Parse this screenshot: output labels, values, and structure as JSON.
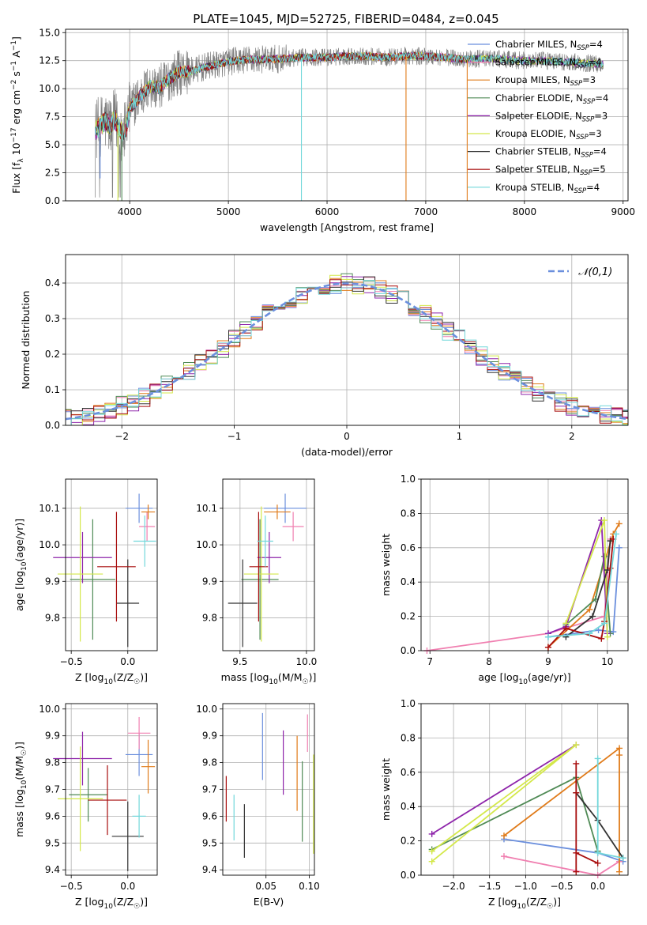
{
  "figure": {
    "title": "PLATE=1045, MJD=52725, FIBERID=0484, z=0.045"
  },
  "colors": {
    "data_gray": "#808080",
    "grid": "#b0b0b0",
    "series": [
      "#6b8fdd",
      "#f07fb0",
      "#e07b1a",
      "#4f8a55",
      "#8e24aa",
      "#d4e84a",
      "#333333",
      "#a80d0d",
      "#72d7da"
    ]
  },
  "labels": {
    "models": [
      {
        "name": "Chabrier MILES, N",
        "sub": "SSP",
        "eq": "=4"
      },
      {
        "name": "Salpeter MILES, N",
        "sub": "SSP",
        "eq": "=4"
      },
      {
        "name": "Kroupa MILES, N",
        "sub": "SSP",
        "eq": "=3"
      },
      {
        "name": "Chabrier ELODIE, N",
        "sub": "SSP",
        "eq": "=4"
      },
      {
        "name": "Salpeter ELODIE, N",
        "sub": "SSP",
        "eq": "=3"
      },
      {
        "name": "Kroupa ELODIE, N",
        "sub": "SSP",
        "eq": "=3"
      },
      {
        "name": "Chabrier STELIB, N",
        "sub": "SSP",
        "eq": "=4"
      },
      {
        "name": "Salpeter STELIB, N",
        "sub": "SSP",
        "eq": "=5"
      },
      {
        "name": "Kroupa STELIB, N",
        "sub": "SSP",
        "eq": "=4"
      }
    ],
    "normal_legend": "𝒩(0,1)"
  },
  "chart_data": [
    {
      "id": "spectrum",
      "type": "line",
      "title": "PLATE=1045, MJD=52725, FIBERID=0484, z=0.045",
      "xlabel": "wavelength [Angstrom, rest frame]",
      "ylabel": "Flux [f_λ 10^-17 erg cm^-2 s^-1 A^-1]",
      "xlim": [
        3350,
        9050
      ],
      "ylim": [
        0,
        15.3
      ],
      "xticks": [
        4000,
        5000,
        6000,
        7000,
        8000,
        9000
      ],
      "yticks": [
        0.0,
        2.5,
        5.0,
        7.5,
        10.0,
        12.5,
        15.0
      ],
      "legend": "upper-right",
      "continuum": {
        "x": [
          3650,
          3700,
          3750,
          3800,
          3850,
          3900,
          3950,
          4000,
          4100,
          4200,
          4300,
          4400,
          4500,
          4600,
          4800,
          5000,
          5200,
          5400,
          5600,
          5800,
          6000,
          6200,
          6400,
          6600,
          6800,
          7000,
          7200,
          7400,
          7600,
          7800,
          8000,
          8200,
          8400,
          8600,
          8800
        ],
        "y": [
          6.3,
          6.6,
          7.1,
          6.7,
          7.3,
          6.4,
          6.0,
          8.2,
          9.3,
          10.2,
          10.1,
          10.9,
          11.5,
          11.5,
          12.0,
          12.4,
          12.6,
          12.6,
          12.7,
          12.8,
          12.8,
          12.9,
          12.9,
          12.8,
          12.9,
          12.9,
          12.8,
          12.6,
          12.7,
          12.6,
          12.5,
          12.5,
          12.4,
          12.3,
          12.2
        ]
      },
      "glitches": [
        {
          "x": 3700,
          "model": "Chabrier MILES",
          "depth": 2.0
        },
        {
          "x": 3880,
          "model": "Kroupa ELODIE",
          "depth": 0.0
        },
        {
          "x": 3920,
          "model": "Chabrier ELODIE",
          "depth": 0.0
        },
        {
          "x": 5740,
          "model": "Kroupa STELIB",
          "depth": 0.0
        },
        {
          "x": 6800,
          "model": "Kroupa MILES",
          "depth": 0.0
        },
        {
          "x": 7420,
          "model": "Kroupa MILES",
          "depth": 0.0
        }
      ],
      "series": [
        "Chabrier MILES",
        "Salpeter MILES",
        "Kroupa MILES",
        "Chabrier ELODIE",
        "Salpeter ELODIE",
        "Kroupa ELODIE",
        "Chabrier STELIB",
        "Salpeter STELIB",
        "Kroupa STELIB"
      ]
    },
    {
      "id": "residuals",
      "type": "histogram",
      "xlabel": "(data-model)/error",
      "ylabel": "Normed distribution",
      "xlim": [
        -2.5,
        2.5
      ],
      "ylim": [
        0,
        0.48
      ],
      "xticks": [
        -2,
        -1,
        0,
        1,
        2
      ],
      "yticks": [
        0.0,
        0.1,
        0.2,
        0.3,
        0.4
      ],
      "legend": "upper-right",
      "bin_width": 0.1,
      "curve": "normal(0,1)"
    },
    {
      "id": "age_vs_Z",
      "type": "errorbar",
      "xlabel": "Z [log10(Z/Z☉)]",
      "ylabel": "age [log10(age/yr)]",
      "xlim": [
        -0.55,
        0.26
      ],
      "ylim": [
        9.71,
        10.18
      ],
      "xticks": [
        -0.5,
        0.0
      ],
      "yticks": [
        9.8,
        9.9,
        10.0,
        10.1
      ],
      "points": [
        {
          "model": "Chabrier MILES",
          "x": 0.1,
          "xerr": 0.12,
          "y": 10.1,
          "yerr": 0.04
        },
        {
          "model": "Salpeter MILES",
          "x": 0.17,
          "xerr": 0.07,
          "y": 10.05,
          "yerr": 0.04
        },
        {
          "model": "Kroupa MILES",
          "x": 0.18,
          "xerr": 0.06,
          "y": 10.09,
          "yerr": 0.02
        },
        {
          "model": "Chabrier ELODIE",
          "x": -0.31,
          "xerr": 0.2,
          "y": 9.905,
          "yerr": 0.165
        },
        {
          "model": "Salpeter ELODIE",
          "x": -0.4,
          "xerr": 0.26,
          "y": 9.965,
          "yerr": 0.07
        },
        {
          "model": "Kroupa ELODIE",
          "x": -0.42,
          "xerr": 0.2,
          "y": 9.92,
          "yerr": 0.185
        },
        {
          "model": "Chabrier STELIB",
          "x": 0.0,
          "xerr": 0.1,
          "y": 9.84,
          "yerr": 0.12
        },
        {
          "model": "Salpeter STELIB",
          "x": -0.1,
          "xerr": 0.17,
          "y": 9.94,
          "yerr": 0.15
        },
        {
          "model": "Kroupa STELIB",
          "x": 0.15,
          "xerr": 0.1,
          "y": 10.01,
          "yerr": 0.07
        }
      ]
    },
    {
      "id": "age_vs_mass",
      "type": "errorbar",
      "xlabel": "mass [log10(M/M☉)]",
      "xlim": [
        9.37,
        10.06
      ],
      "ylim": [
        9.71,
        10.18
      ],
      "xticks": [
        9.5,
        10.0
      ],
      "yticks": [
        9.8,
        9.9,
        10.0,
        10.1
      ],
      "points": [
        {
          "model": "Chabrier MILES",
          "x": 9.84,
          "xerr": 0.16,
          "y": 10.1,
          "yerr": 0.04
        },
        {
          "model": "Salpeter MILES",
          "x": 9.9,
          "xerr": 0.08,
          "y": 10.05,
          "yerr": 0.04
        },
        {
          "model": "Kroupa MILES",
          "x": 9.78,
          "xerr": 0.1,
          "y": 10.09,
          "yerr": 0.02
        },
        {
          "model": "Chabrier ELODIE",
          "x": 9.65,
          "xerr": 0.14,
          "y": 9.905,
          "yerr": 0.165
        },
        {
          "model": "Salpeter ELODIE",
          "x": 9.72,
          "xerr": 0.09,
          "y": 9.965,
          "yerr": 0.07
        },
        {
          "model": "Kroupa ELODIE",
          "x": 9.66,
          "xerr": 0.13,
          "y": 9.92,
          "yerr": 0.185
        },
        {
          "model": "Chabrier STELIB",
          "x": 9.52,
          "xerr": 0.11,
          "y": 9.84,
          "yerr": 0.12
        },
        {
          "model": "Salpeter STELIB",
          "x": 9.64,
          "xerr": 0.07,
          "y": 9.94,
          "yerr": 0.15
        },
        {
          "model": "Kroupa STELIB",
          "x": 9.69,
          "xerr": 0.06,
          "y": 10.01,
          "yerr": 0.07
        }
      ]
    },
    {
      "id": "weight_vs_age",
      "type": "line",
      "xlabel": "age [log10(age/yr)]",
      "ylabel": "mass weight",
      "xlim": [
        6.85,
        10.35
      ],
      "ylim": [
        0,
        1.0
      ],
      "xticks": [
        7,
        8,
        9,
        10
      ],
      "yticks": [
        0.0,
        0.2,
        0.4,
        0.6,
        0.8,
        1.0
      ],
      "series": [
        {
          "model": "Chabrier MILES",
          "x": [
            9.0,
            9.85,
            10.1,
            10.2
          ],
          "y": [
            0.08,
            0.12,
            0.11,
            0.6
          ]
        },
        {
          "model": "Salpeter MILES",
          "x": [
            6.95,
            9.0,
            9.95,
            10.05
          ],
          "y": [
            0.0,
            0.1,
            0.2,
            0.65
          ]
        },
        {
          "model": "Kroupa MILES",
          "x": [
            9.0,
            9.7,
            10.1,
            10.2
          ],
          "y": [
            0.02,
            0.24,
            0.68,
            0.74
          ]
        },
        {
          "model": "Chabrier ELODIE",
          "x": [
            9.3,
            9.8,
            9.95,
            10.05
          ],
          "y": [
            0.15,
            0.3,
            0.55,
            0.1
          ]
        },
        {
          "model": "Salpeter ELODIE",
          "x": [
            9.0,
            9.3,
            9.9,
            10.0
          ],
          "y": [
            0.1,
            0.14,
            0.76,
            0.1
          ]
        },
        {
          "model": "Kroupa ELODIE",
          "x": [
            9.3,
            9.95,
            10.0
          ],
          "y": [
            0.16,
            0.76,
            0.08
          ]
        },
        {
          "model": "Chabrier STELIB",
          "x": [
            9.3,
            9.75,
            10.0,
            10.05
          ],
          "y": [
            0.08,
            0.2,
            0.47,
            0.64
          ]
        },
        {
          "model": "Salpeter STELIB",
          "x": [
            9.0,
            9.3,
            9.9,
            9.95,
            10.05,
            10.1
          ],
          "y": [
            0.02,
            0.13,
            0.07,
            0.17,
            0.48,
            0.65
          ]
        },
        {
          "model": "Kroupa STELIB",
          "x": [
            9.0,
            9.7,
            9.95,
            10.15
          ],
          "y": [
            0.08,
            0.1,
            0.16,
            0.68
          ]
        }
      ]
    },
    {
      "id": "mass_vs_Z",
      "type": "errorbar",
      "xlabel": "Z [log10(Z/Z☉)]",
      "ylabel": "mass [log10(M/M☉)]",
      "xlim": [
        -0.55,
        0.26
      ],
      "ylim": [
        9.38,
        10.02
      ],
      "xticks": [
        -0.5,
        0.0
      ],
      "yticks": [
        9.4,
        9.5,
        9.6,
        9.7,
        9.8,
        9.9,
        10.0
      ],
      "points": [
        {
          "model": "Chabrier MILES",
          "x": 0.1,
          "xerr": 0.12,
          "y": 9.83,
          "yerr": 0.08
        },
        {
          "model": "Salpeter MILES",
          "x": 0.1,
          "xerr": 0.1,
          "y": 9.91,
          "yerr": 0.06
        },
        {
          "model": "Kroupa MILES",
          "x": 0.18,
          "xerr": 0.06,
          "y": 9.785,
          "yerr": 0.1
        },
        {
          "model": "Chabrier ELODIE",
          "x": -0.35,
          "xerr": 0.17,
          "y": 9.68,
          "yerr": 0.1
        },
        {
          "model": "Salpeter ELODIE",
          "x": -0.4,
          "xerr": 0.26,
          "y": 9.815,
          "yerr": 0.1
        },
        {
          "model": "Kroupa ELODIE",
          "x": -0.42,
          "xerr": 0.2,
          "y": 9.665,
          "yerr": 0.195
        },
        {
          "model": "Chabrier STELIB",
          "x": 0.0,
          "xerr": 0.14,
          "y": 9.525,
          "yerr": 0.13
        },
        {
          "model": "Salpeter STELIB",
          "x": -0.18,
          "xerr": 0.17,
          "y": 9.66,
          "yerr": 0.13
        },
        {
          "model": "Kroupa STELIB",
          "x": 0.1,
          "xerr": 0.06,
          "y": 9.6,
          "yerr": 0.08
        }
      ]
    },
    {
      "id": "mass_vs_EBV",
      "type": "errorbar",
      "xlabel": "E(B-V)",
      "xlim": [
        0.0,
        0.106
      ],
      "ylim": [
        9.38,
        10.02
      ],
      "xticks": [
        0.05,
        0.1
      ],
      "yticks": [
        9.4,
        9.5,
        9.6,
        9.7,
        9.8,
        9.9,
        10.0
      ],
      "points": [
        {
          "model": "Chabrier MILES",
          "x": 0.046,
          "y": 9.86,
          "yerr": 0.125
        },
        {
          "model": "Salpeter MILES",
          "x": 0.098,
          "y": 9.91,
          "yerr": 0.07
        },
        {
          "model": "Kroupa MILES",
          "x": 0.086,
          "y": 9.76,
          "yerr": 0.14
        },
        {
          "model": "Chabrier ELODIE",
          "x": 0.092,
          "y": 9.655,
          "yerr": 0.15
        },
        {
          "model": "Salpeter ELODIE",
          "x": 0.07,
          "y": 9.8,
          "yerr": 0.12
        },
        {
          "model": "Kroupa ELODIE",
          "x": 0.105,
          "y": 9.645,
          "yerr": 0.185
        },
        {
          "model": "Chabrier STELIB",
          "x": 0.025,
          "y": 9.545,
          "yerr": 0.1
        },
        {
          "model": "Salpeter STELIB",
          "x": 0.004,
          "y": 9.665,
          "yerr": 0.085
        },
        {
          "model": "Kroupa STELIB",
          "x": 0.013,
          "y": 9.595,
          "yerr": 0.085
        }
      ]
    },
    {
      "id": "weight_vs_Z",
      "type": "line",
      "xlabel": "Z [log10(Z/Z☉)]",
      "ylabel": "mass weight",
      "xlim": [
        -2.45,
        0.42
      ],
      "ylim": [
        0,
        1.0
      ],
      "xticks": [
        -2.0,
        -1.5,
        -1.0,
        -0.5,
        0.0
      ],
      "yticks": [
        0.0,
        0.2,
        0.4,
        0.6,
        0.8,
        1.0
      ],
      "series": [
        {
          "model": "Chabrier MILES",
          "x": [
            -1.3,
            0.0,
            0.35
          ],
          "y": [
            0.21,
            0.13,
            0.08
          ]
        },
        {
          "model": "Salpeter MILES",
          "x": [
            -1.3,
            0.0,
            0.3
          ],
          "y": [
            0.11,
            0.0,
            0.08
          ]
        },
        {
          "model": "Kroupa MILES",
          "x": [
            -1.3,
            0.3,
            0.3,
            0.3
          ],
          "y": [
            0.23,
            0.74,
            0.7,
            0.02
          ]
        },
        {
          "model": "Chabrier ELODIE",
          "x": [
            -2.3,
            -0.3,
            0.0
          ],
          "y": [
            0.15,
            0.57,
            0.14
          ]
        },
        {
          "model": "Salpeter ELODIE",
          "x": [
            -2.3,
            -0.3
          ],
          "y": [
            0.24,
            0.76
          ]
        },
        {
          "model": "Kroupa ELODIE",
          "x": [
            -2.3,
            -0.3,
            -2.3
          ],
          "y": [
            0.08,
            0.76,
            0.14
          ]
        },
        {
          "model": "Chabrier STELIB",
          "x": [
            -0.3,
            0.0,
            0.35
          ],
          "y": [
            0.48,
            0.32,
            0.1
          ]
        },
        {
          "model": "Salpeter STELIB",
          "x": [
            -0.3,
            -0.3,
            -0.3,
            -0.3,
            0.0
          ],
          "y": [
            0.02,
            0.65,
            0.48,
            0.13,
            0.07
          ]
        },
        {
          "model": "Kroupa STELIB",
          "x": [
            0.0,
            0.0,
            0.35
          ],
          "y": [
            0.68,
            0.13,
            0.1
          ]
        }
      ]
    }
  ]
}
